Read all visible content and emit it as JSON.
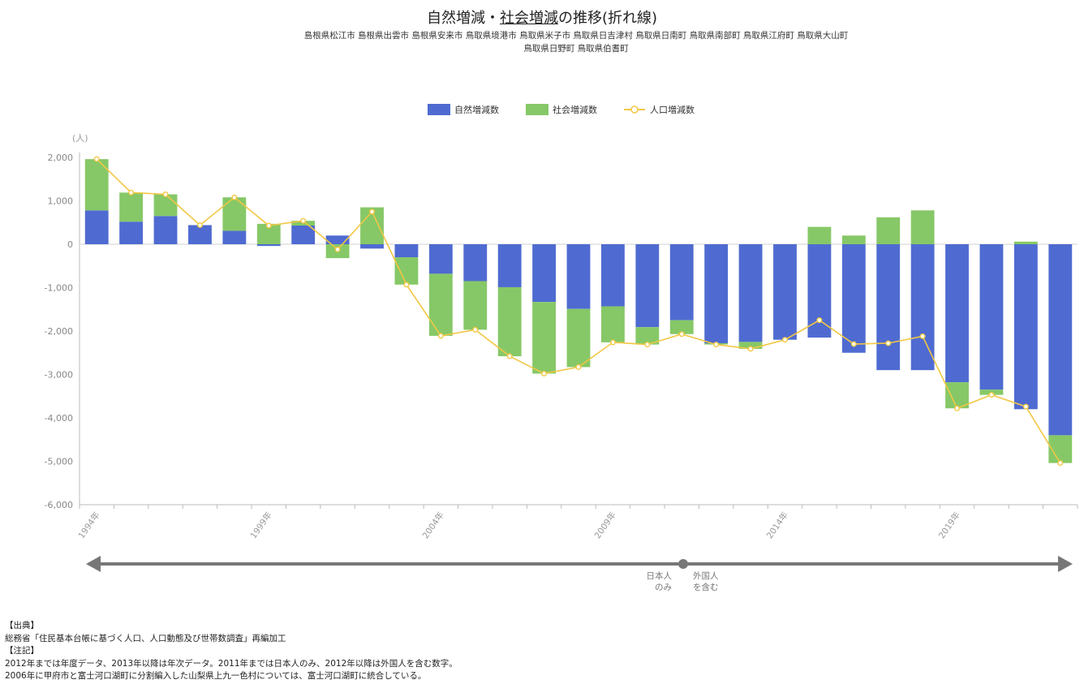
{
  "header": {
    "title_part1": "自然増減・",
    "title_part2": "社会増減",
    "title_part3": "の推移(折れ線)",
    "regions_line1": "島根県松江市 島根県出雲市 島根県安来市 鳥取県境港市 鳥取県米子市 鳥取県日吉津村 鳥取県日南町 鳥取県南部町 鳥取県江府町 鳥取県大山町",
    "regions_line2": "鳥取県日野町 鳥取県伯耆町"
  },
  "colors": {
    "natural": "#4f6bd1",
    "social": "#86c867",
    "population": "#f2c744",
    "axis": "#bbbbbb",
    "arrow": "#777777"
  },
  "chart_data": {
    "type": "bar",
    "stacked": true,
    "x": [
      "1994年",
      "1995年",
      "1996年",
      "1997年",
      "1998年",
      "1999年",
      "2000年",
      "2001年",
      "2002年",
      "2003年",
      "2004年",
      "2005年",
      "2006年",
      "2007年",
      "2008年",
      "2009年",
      "2010年",
      "2011年",
      "2012年",
      "2013年",
      "2014年",
      "2015年",
      "2016年",
      "2017年",
      "2018年",
      "2019年",
      "2020年",
      "2021年",
      "2022年"
    ],
    "x_tick_labels": [
      "1994年",
      "1999年",
      "2004年",
      "2009年",
      "2014年",
      "2019年"
    ],
    "series": [
      {
        "name": "自然増減数",
        "type": "bar",
        "values": [
          780,
          520,
          650,
          440,
          310,
          -40,
          430,
          200,
          -100,
          -300,
          -680,
          -850,
          -990,
          -1330,
          -1490,
          -1430,
          -1910,
          -1750,
          -2280,
          -2250,
          -2200,
          -2150,
          -2500,
          -2900,
          -2900,
          -3180,
          -3350,
          -3800,
          -4400
        ]
      },
      {
        "name": "社会増減数",
        "type": "bar",
        "values": [
          1180,
          670,
          500,
          0,
          770,
          470,
          110,
          -320,
          850,
          -630,
          -1430,
          -1120,
          -1590,
          -1650,
          -1340,
          -830,
          -400,
          -320,
          -30,
          -160,
          0,
          400,
          200,
          620,
          780,
          -600,
          -120,
          60,
          -640
        ]
      },
      {
        "name": "人口増減数",
        "type": "line",
        "values": [
          1960,
          1190,
          1150,
          440,
          1080,
          430,
          540,
          -120,
          750,
          -930,
          -2110,
          -1970,
          -2580,
          -2980,
          -2830,
          -2260,
          -2310,
          -2070,
          -2310,
          -2410,
          -2200,
          -1750,
          -2300,
          -2280,
          -2120,
          -3780,
          -3470,
          -3740,
          -5040
        ]
      }
    ],
    "ylabel": "(人)",
    "ylim": [
      -6000,
      2000
    ],
    "yticks": [
      2000,
      1000,
      0,
      -1000,
      -2000,
      -3000,
      -4000,
      -5000,
      -6000
    ],
    "ytick_labels": [
      "2,000",
      "1,000",
      "0",
      "-1,000",
      "-2,000",
      "-3,000",
      "-4,000",
      "-5,000",
      "-6,000"
    ],
    "legend_position": "top-center",
    "grid": false,
    "annotation_left": [
      "日本人",
      "のみ"
    ],
    "annotation_right": [
      "外国人",
      "を含む"
    ]
  },
  "notes": {
    "source_head": "【出典】",
    "source": "総務省「住民基本台帳に基づく人口、人口動態及び世帯数調査」再編加工",
    "note_head": "【注記】",
    "note1": "2012年までは年度データ、2013年以降は年次データ。2011年までは日本人のみ、2012年以降は外国人を含む数字。",
    "note2": "2006年に甲府市と富士河口湖町に分割編入した山梨県上九一色村については、富士河口湖町に統合している。"
  }
}
